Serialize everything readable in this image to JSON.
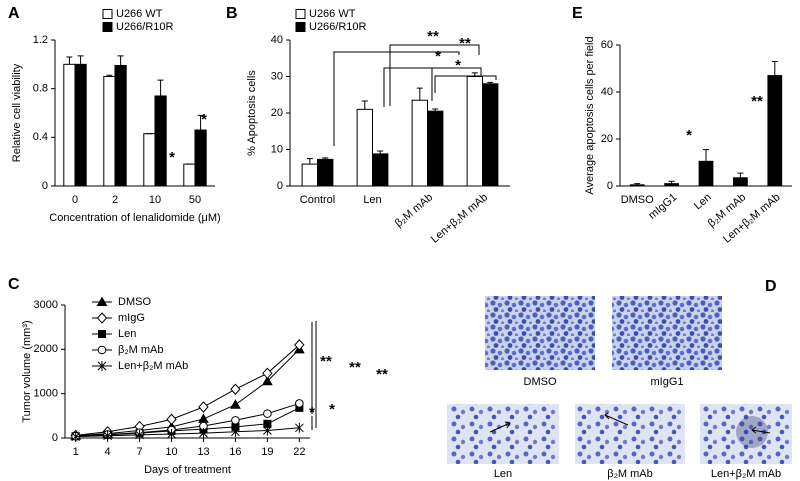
{
  "chart_data": [
    {
      "type": "bar",
      "panel": "A",
      "ylabel": "Relative cell viability",
      "xlabel": "Concentration of lenalidomide (μM)",
      "categories": [
        "0",
        "2",
        "10",
        "50"
      ],
      "series": [
        {
          "name": "U266 WT",
          "color": "#ffffff",
          "values": [
            1.0,
            0.9,
            0.43,
            0.18
          ],
          "errors": [
            0.06,
            0.01,
            0,
            0
          ]
        },
        {
          "name": "U266/R10R",
          "color": "#000000",
          "values": [
            1.0,
            0.99,
            0.74,
            0.46
          ],
          "errors": [
            0.07,
            0.08,
            0.13,
            0.12
          ]
        }
      ],
      "ylim": [
        0,
        1.2
      ],
      "yticks": [
        0,
        0.4,
        0.8,
        1.2
      ],
      "annotations": [
        "*",
        "*"
      ]
    },
    {
      "type": "bar",
      "panel": "B",
      "ylabel": "% Apoptosis cells",
      "categories": [
        "Control",
        "Len",
        "β₂M mAb",
        "Len+β₂M mAb"
      ],
      "series": [
        {
          "name": "U266 WT",
          "color": "#ffffff",
          "values": [
            6,
            21,
            23.5,
            30
          ],
          "errors": [
            1.5,
            2.3,
            3.3,
            1
          ]
        },
        {
          "name": "U266/R10R",
          "color": "#000000",
          "values": [
            7.3,
            8.8,
            20.5,
            28
          ],
          "errors": [
            0.4,
            0.8,
            0.6,
            0.4
          ]
        }
      ],
      "ylim": [
        0,
        40
      ],
      "yticks": [
        0,
        10,
        20,
        30,
        40
      ],
      "annotations": [
        "**",
        "**",
        "*",
        "*"
      ]
    },
    {
      "type": "bar",
      "panel": "E",
      "ylabel": "Average apoptosis cells per field",
      "categories": [
        "DMSO",
        "mIgG1",
        "Len",
        "β₂M mAb",
        "Len+β₂M mAb"
      ],
      "series": [
        {
          "color": "#000000",
          "values": [
            0.5,
            1,
            10.5,
            3.5,
            47
          ],
          "errors": [
            0.5,
            1,
            5,
            2,
            6
          ]
        }
      ],
      "ylim": [
        0,
        60
      ],
      "yticks": [
        0,
        20,
        40,
        60
      ],
      "annotations": [
        "*",
        "**"
      ]
    },
    {
      "type": "line",
      "panel": "C",
      "ylabel": "Tumor volume (mm³)",
      "xlabel": "Days of treatment",
      "x": [
        1,
        4,
        7,
        10,
        13,
        16,
        19,
        22
      ],
      "xlim": [
        0,
        23
      ],
      "xticks": [
        1,
        4,
        7,
        10,
        13,
        16,
        19,
        22
      ],
      "ylim": [
        0,
        3000
      ],
      "yticks": [
        0,
        1000,
        2000,
        3000
      ],
      "series": [
        {
          "name": "DMSO",
          "color": "#000000",
          "marker": "triangle",
          "values": [
            50,
            100,
            170,
            250,
            430,
            750,
            1280,
            2000
          ]
        },
        {
          "name": "mIgG",
          "color": "#000000",
          "marker": "diamond",
          "values": [
            60,
            140,
            260,
            420,
            700,
            1100,
            1460,
            2100
          ]
        },
        {
          "name": "Len",
          "color": "#000000",
          "marker": "square",
          "values": [
            40,
            70,
            110,
            160,
            200,
            250,
            320,
            680
          ]
        },
        {
          "name": "β₂M mAb",
          "color": "#000000",
          "marker": "circle",
          "values": [
            40,
            80,
            120,
            180,
            270,
            400,
            550,
            780
          ]
        },
        {
          "name": "Len+β₂M mAb",
          "color": "#000000",
          "marker": "star",
          "values": [
            30,
            50,
            70,
            90,
            110,
            140,
            170,
            230
          ]
        }
      ],
      "annotations": [
        "**",
        "**",
        "**",
        "*",
        "*"
      ]
    }
  ],
  "panel_d": {
    "panel": "D",
    "labels": [
      "DMSO",
      "mIgG1",
      "Len",
      "β₂M mAb",
      "Len+β₂M mAb"
    ]
  }
}
